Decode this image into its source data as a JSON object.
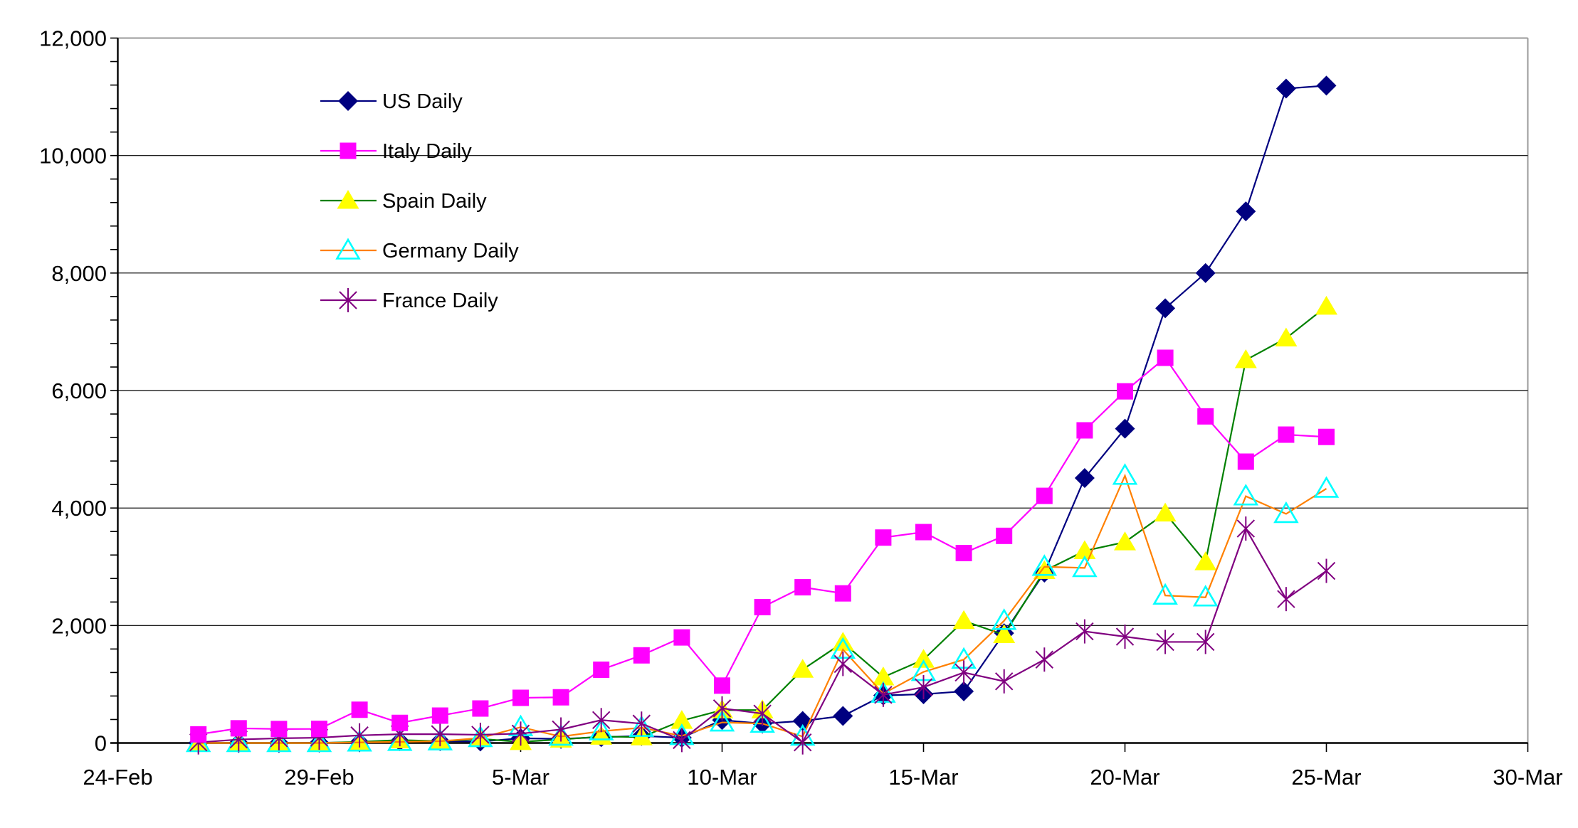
{
  "chart_data": {
    "type": "line",
    "title": "",
    "xlabel": "",
    "ylabel": "",
    "x": [
      "26-Feb",
      "27-Feb",
      "28-Feb",
      "29-Feb",
      "1-Mar",
      "2-Mar",
      "3-Mar",
      "4-Mar",
      "5-Mar",
      "6-Mar",
      "7-Mar",
      "8-Mar",
      "9-Mar",
      "10-Mar",
      "11-Mar",
      "12-Mar",
      "13-Mar",
      "14-Mar",
      "15-Mar",
      "16-Mar",
      "17-Mar",
      "18-Mar",
      "19-Mar",
      "20-Mar",
      "21-Mar",
      "22-Mar",
      "23-Mar",
      "24-Mar",
      "25-Mar"
    ],
    "series": [
      {
        "name": "US Daily",
        "marker": "diamond",
        "line_color": "#000080",
        "marker_color": "#000080",
        "values": [
          0,
          0,
          0,
          5,
          10,
          30,
          30,
          25,
          80,
          70,
          100,
          120,
          90,
          390,
          330,
          375,
          460,
          810,
          830,
          880,
          1870,
          2900,
          4510,
          5350,
          7400,
          8000,
          9050,
          11140,
          11190
        ]
      },
      {
        "name": "Italy Daily",
        "marker": "square",
        "line_color": "#FF00FF",
        "marker_color": "#FF00FF",
        "values": [
          147,
          250,
          238,
          240,
          566,
          342,
          466,
          587,
          769,
          778,
          1247,
          1492,
          1797,
          977,
          2313,
          2651,
          2547,
          3497,
          3590,
          3233,
          3526,
          4207,
          5322,
          5986,
          6557,
          5560,
          4789,
          5249,
          5210
        ]
      },
      {
        "name": "Spain Daily",
        "marker": "triangle",
        "line_color": "#008000",
        "marker_color": "#FFFF00",
        "values": [
          0,
          0,
          0,
          0,
          20,
          50,
          30,
          70,
          20,
          60,
          110,
          100,
          380,
          560,
          560,
          1250,
          1710,
          1120,
          1420,
          2080,
          1840,
          2930,
          3270,
          3420,
          3910,
          3080,
          6520,
          6890,
          7430
        ]
      },
      {
        "name": "Germany Daily",
        "marker": "triangle-open",
        "line_color": "#FF8000",
        "marker_color": "#00FFFF",
        "values": [
          0,
          0,
          0,
          0,
          10,
          20,
          30,
          85,
          270,
          110,
          200,
          260,
          120,
          350,
          330,
          110,
          1590,
          840,
          1210,
          1420,
          2080,
          3000,
          2980,
          4550,
          2510,
          2480,
          4200,
          3900,
          4330
        ]
      },
      {
        "name": "France Daily",
        "marker": "star",
        "line_color": "#800080",
        "marker_color": "#800080",
        "values": [
          10,
          60,
          80,
          90,
          130,
          150,
          150,
          140,
          160,
          230,
          390,
          330,
          50,
          590,
          500,
          10,
          1345,
          820,
          950,
          1200,
          1050,
          1420,
          1900,
          1810,
          1720,
          1720,
          3650,
          2450,
          2930
        ]
      }
    ],
    "x_axis": {
      "tick_labels": [
        "24-Feb",
        "29-Feb",
        "5-Mar",
        "10-Mar",
        "15-Mar",
        "20-Mar",
        "25-Mar",
        "30-Mar"
      ],
      "tick_day_offsets": [
        0,
        5,
        10,
        15,
        20,
        25,
        30,
        35
      ],
      "data_start_offset": 2,
      "total_days": 35
    },
    "y_axis": {
      "min": 0,
      "max": 12000,
      "major_step": 2000,
      "minor_step": 400,
      "tick_labels": [
        "0",
        "2,000",
        "4,000",
        "6,000",
        "8,000",
        "10,000",
        "12,000"
      ]
    },
    "grid": "horizontal-major",
    "legend_position": "upper-left-inside",
    "legend_labels": [
      "US Daily",
      "Italy Daily",
      "Spain Daily",
      "Germany Daily",
      "France Daily"
    ],
    "colors": {
      "background": "#FFFFFF",
      "gridline": "#000000",
      "axis": "#000000",
      "plot_border": "#999999"
    }
  }
}
